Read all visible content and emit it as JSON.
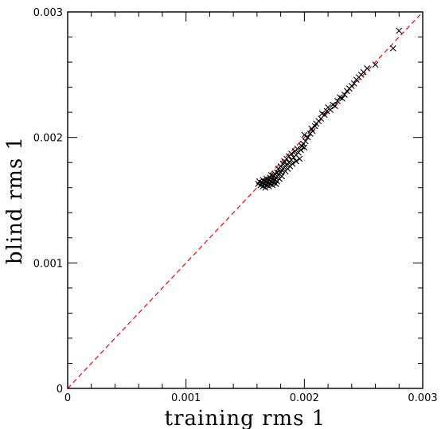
{
  "chart_data": {
    "type": "scatter",
    "title": "",
    "xlabel": "training rms 1",
    "ylabel": "blind rms 1",
    "xlim": [
      0,
      0.003
    ],
    "ylim": [
      0,
      0.003
    ],
    "x_ticks": [
      "0",
      "0.001",
      "0.002",
      "0.003"
    ],
    "y_ticks": [
      "0",
      "0.001",
      "0.002",
      "0.003"
    ],
    "x_tick_values": [
      0,
      0.001,
      0.002,
      0.003
    ],
    "y_tick_values": [
      0,
      0.001,
      0.002,
      0.003
    ],
    "grid": false,
    "marker": "x",
    "marker_color": "#000000",
    "reference_line": {
      "type": "y=x",
      "style": "dashed",
      "color": "#ff0000"
    },
    "series": [
      {
        "points": [
          [
            0.00161,
            0.00163
          ],
          [
            0.00162,
            0.00165
          ],
          [
            0.00163,
            0.00162
          ],
          [
            0.00164,
            0.00164
          ],
          [
            0.00165,
            0.00161
          ],
          [
            0.00165,
            0.00166
          ],
          [
            0.00166,
            0.00163
          ],
          [
            0.00167,
            0.0016
          ],
          [
            0.00167,
            0.00165
          ],
          [
            0.00168,
            0.00162
          ],
          [
            0.00168,
            0.00167
          ],
          [
            0.00169,
            0.00164
          ],
          [
            0.0017,
            0.00161
          ],
          [
            0.0017,
            0.00166
          ],
          [
            0.00171,
            0.00163
          ],
          [
            0.00171,
            0.00168
          ],
          [
            0.00172,
            0.00165
          ],
          [
            0.00172,
            0.0017
          ],
          [
            0.00173,
            0.00162
          ],
          [
            0.00173,
            0.00167
          ],
          [
            0.00174,
            0.00164
          ],
          [
            0.00174,
            0.00169
          ],
          [
            0.00175,
            0.00166
          ],
          [
            0.00175,
            0.00171
          ],
          [
            0.00176,
            0.00163
          ],
          [
            0.00176,
            0.00168
          ],
          [
            0.00177,
            0.00165
          ],
          [
            0.00177,
            0.00172
          ],
          [
            0.00178,
            0.0017
          ],
          [
            0.00178,
            0.00175
          ],
          [
            0.00179,
            0.00167
          ],
          [
            0.0018,
            0.00172
          ],
          [
            0.0018,
            0.00177
          ],
          [
            0.00181,
            0.00169
          ],
          [
            0.00181,
            0.00174
          ],
          [
            0.00182,
            0.00179
          ],
          [
            0.00183,
            0.00176
          ],
          [
            0.00183,
            0.00181
          ],
          [
            0.00184,
            0.00173
          ],
          [
            0.00185,
            0.00178
          ],
          [
            0.00185,
            0.00183
          ],
          [
            0.00186,
            0.00175
          ],
          [
            0.00187,
            0.0018
          ],
          [
            0.00187,
            0.00185
          ],
          [
            0.00188,
            0.00177
          ],
          [
            0.00189,
            0.00182
          ],
          [
            0.00189,
            0.00187
          ],
          [
            0.0019,
            0.00179
          ],
          [
            0.00191,
            0.00184
          ],
          [
            0.00192,
            0.00189
          ],
          [
            0.00193,
            0.00181
          ],
          [
            0.00193,
            0.00186
          ],
          [
            0.00194,
            0.00191
          ],
          [
            0.00195,
            0.00188
          ],
          [
            0.00196,
            0.00183
          ],
          [
            0.00197,
            0.0019
          ],
          [
            0.00198,
            0.00193
          ],
          [
            0.00199,
            0.00195
          ],
          [
            0.002,
            0.00192
          ],
          [
            0.002,
            0.00202
          ],
          [
            0.00201,
            0.00197
          ],
          [
            0.00203,
            0.002
          ],
          [
            0.00205,
            0.00203
          ],
          [
            0.00206,
            0.00207
          ],
          [
            0.00207,
            0.00205
          ],
          [
            0.00209,
            0.00209
          ],
          [
            0.0021,
            0.00211
          ],
          [
            0.00212,
            0.00213
          ],
          [
            0.00214,
            0.00215
          ],
          [
            0.00215,
            0.00219
          ],
          [
            0.00217,
            0.00218
          ],
          [
            0.00219,
            0.00221
          ],
          [
            0.0022,
            0.00224
          ],
          [
            0.00222,
            0.00222
          ],
          [
            0.00224,
            0.00226
          ],
          [
            0.00226,
            0.00225
          ],
          [
            0.00228,
            0.00229
          ],
          [
            0.0023,
            0.00232
          ],
          [
            0.00232,
            0.00231
          ],
          [
            0.00234,
            0.00234
          ],
          [
            0.00236,
            0.00237
          ],
          [
            0.00238,
            0.00239
          ],
          [
            0.0024,
            0.00241
          ],
          [
            0.00242,
            0.00243
          ],
          [
            0.00244,
            0.00246
          ],
          [
            0.00246,
            0.00248
          ],
          [
            0.00248,
            0.0025
          ],
          [
            0.0025,
            0.00252
          ],
          [
            0.00253,
            0.00255
          ],
          [
            0.0026,
            0.00258
          ],
          [
            0.00275,
            0.00271
          ],
          [
            0.0028,
            0.00285
          ]
        ]
      }
    ]
  }
}
